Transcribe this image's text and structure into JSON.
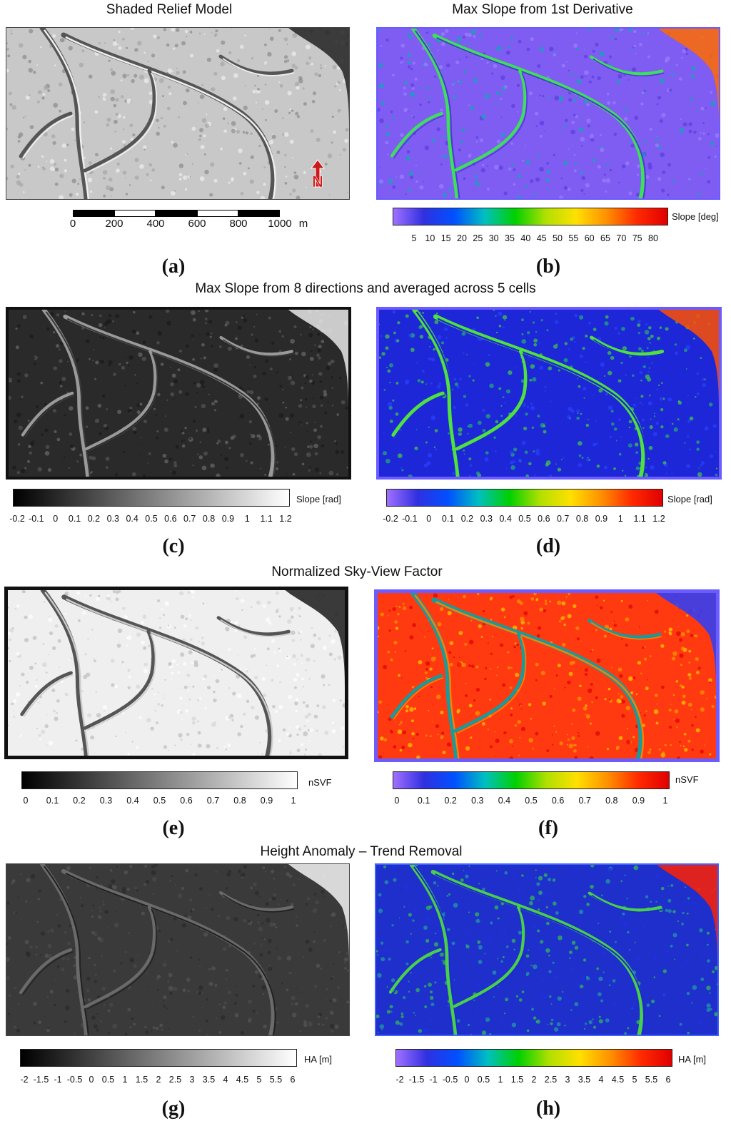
{
  "titles": {
    "row1_left": "Shaded Relief Model",
    "row1_right": "Max Slope from 1st Derivative",
    "row2": "Max Slope from 8 directions and averaged across 5 cells",
    "row3": "Normalized Sky-View Factor",
    "row4": "Height Anomaly – Trend Removal"
  },
  "panel_letters": [
    "(a)",
    "(b)",
    "(c)",
    "(d)",
    "(e)",
    "(f)",
    "(g)",
    "(h)"
  ],
  "scale_bar": {
    "labels": [
      "0",
      "200",
      "400",
      "600",
      "800",
      "1000"
    ],
    "unit": "m"
  },
  "north_arrow": {
    "label": "N",
    "color": "#cc1a1a"
  },
  "colorbars": {
    "b": {
      "unit": "Slope [deg]",
      "ticks": [
        "5",
        "10",
        "15",
        "20",
        "25",
        "30",
        "35",
        "40",
        "45",
        "50",
        "55",
        "60",
        "65",
        "70",
        "75",
        "80"
      ]
    },
    "c": {
      "unit": "Slope [rad]",
      "ticks": [
        "-0.2",
        "-0.1",
        "0",
        "0.1",
        "0.2",
        "0.3",
        "0.4",
        "0.5",
        "0.6",
        "0.7",
        "0.8",
        "0.9",
        "1",
        "1.1",
        "1.2"
      ]
    },
    "d": {
      "unit": "Slope [rad]",
      "ticks": [
        "-0.2",
        "-0.1",
        "0",
        "0.1",
        "0.2",
        "0.3",
        "0.4",
        "0.5",
        "0.6",
        "0.7",
        "0.8",
        "0.9",
        "1",
        "1.1",
        "1.2"
      ]
    },
    "e": {
      "unit": "nSVF",
      "ticks": [
        "0",
        "0.1",
        "0.2",
        "0.3",
        "0.4",
        "0.5",
        "0.6",
        "0.7",
        "0.8",
        "0.9",
        "1"
      ]
    },
    "f": {
      "unit": "nSVF",
      "ticks": [
        "0",
        "0.1",
        "0.2",
        "0.3",
        "0.4",
        "0.5",
        "0.6",
        "0.7",
        "0.8",
        "0.9",
        "1"
      ]
    },
    "g": {
      "unit": "HA [m]",
      "ticks": [
        "-2",
        "-1.5",
        "-1",
        "-0.5",
        "0",
        "0.5",
        "1",
        "1.5",
        "2",
        "2.5",
        "3",
        "3.5",
        "4",
        "4.5",
        "5",
        "5.5",
        "6"
      ]
    },
    "h": {
      "unit": "HA [m]",
      "ticks": [
        "-2",
        "-1.5",
        "-1",
        "-0.5",
        "0",
        "0.5",
        "1",
        "1.5",
        "2",
        "2.5",
        "3",
        "3.5",
        "4",
        "4.5",
        "5",
        "5.5",
        "6"
      ]
    }
  },
  "colors": {
    "rainbow": [
      "#a070ff",
      "#3030e0",
      "#0050ff",
      "#00c0c0",
      "#00d000",
      "#b0e000",
      "#ffe000",
      "#ff9000",
      "#ff2a00",
      "#e00000"
    ],
    "gray": [
      "#000000",
      "#ffffff"
    ]
  }
}
